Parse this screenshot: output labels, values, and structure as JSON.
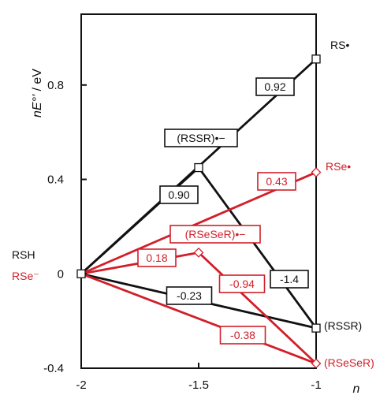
{
  "chart_data": {
    "type": "line",
    "title": "",
    "xlabel_italic": "n",
    "ylabel_italic": "nE°'",
    "ylabel_unit": " / eV",
    "xlim": [
      -2,
      -1
    ],
    "ylim": [
      -0.4,
      1.1
    ],
    "x_ticks": [
      -2,
      -1.5,
      -1
    ],
    "x_tick_labels": [
      "-2",
      "-1.5",
      "-1"
    ],
    "y_ticks": [
      -0.4,
      0,
      0.4,
      0.8
    ],
    "y_tick_labels": [
      "-0.4",
      "0",
      "0.4",
      "0.8"
    ],
    "grid": false,
    "colors": {
      "sulfur": "#111111",
      "selenium": "#d11f2a"
    },
    "points": {
      "RSH": {
        "x": -2,
        "y": 0
      },
      "RSSR_rad": {
        "x": -1.5,
        "y": 0.45
      },
      "RS_rad": {
        "x": -1,
        "y": 0.91
      },
      "RSSR": {
        "x": -1,
        "y": -0.23
      },
      "RSeSeR_rad": {
        "x": -1.5,
        "y": 0.09
      },
      "RSe_rad": {
        "x": -1,
        "y": 0.43
      },
      "RSeSeR": {
        "x": -1,
        "y": -0.38
      }
    },
    "series": [
      {
        "color": "sulfur",
        "x": [
          -2,
          -1
        ],
        "y": [
          0,
          0.91
        ],
        "label": "0.92"
      },
      {
        "color": "sulfur",
        "x": [
          -2,
          -1.5
        ],
        "y": [
          0,
          0.45
        ],
        "label": "0.90"
      },
      {
        "color": "sulfur",
        "x": [
          -1.5,
          -1
        ],
        "y": [
          0.45,
          -0.23
        ],
        "label": "-1.4"
      },
      {
        "color": "sulfur",
        "x": [
          -2,
          -1
        ],
        "y": [
          0,
          -0.23
        ],
        "label": "-0.23"
      },
      {
        "color": "selenium",
        "x": [
          -2,
          -1
        ],
        "y": [
          0,
          0.43
        ],
        "label": "0.43"
      },
      {
        "color": "selenium",
        "x": [
          -2,
          -1.5
        ],
        "y": [
          0,
          0.09
        ],
        "label": "0.18"
      },
      {
        "color": "selenium",
        "x": [
          -1.5,
          -1
        ],
        "y": [
          0.09,
          -0.38
        ],
        "label": "-0.94"
      },
      {
        "color": "selenium",
        "x": [
          -2,
          -1
        ],
        "y": [
          0,
          -0.38
        ],
        "label": "-0.38"
      }
    ],
    "species_labels": [
      {
        "id": "RSH",
        "text": "RSH",
        "color": "sulfur"
      },
      {
        "id": "RSe_minus",
        "text": "RSe⁻",
        "color": "selenium"
      },
      {
        "id": "RS_rad",
        "text": "RS•",
        "color": "sulfur"
      },
      {
        "id": "RSe_rad",
        "text": "RSe•",
        "color": "selenium"
      },
      {
        "id": "RSSR_rad",
        "text": "(RSSR)•−",
        "color": "sulfur",
        "boxed": true
      },
      {
        "id": "RSeSeR_rad",
        "text": "(RSeSeR)•−",
        "color": "selenium",
        "boxed": true
      },
      {
        "id": "RSSR",
        "text": "(RSSR)",
        "color": "sulfur"
      },
      {
        "id": "RSeSeR",
        "text": "(RSeSeR)",
        "color": "selenium"
      }
    ],
    "markers": [
      {
        "point": "RSH",
        "shape": "square",
        "color": "sulfur"
      },
      {
        "point": "RSSR_rad",
        "shape": "square",
        "color": "sulfur"
      },
      {
        "point": "RS_rad",
        "shape": "square",
        "color": "sulfur"
      },
      {
        "point": "RSSR",
        "shape": "square",
        "color": "sulfur"
      },
      {
        "point": "RSeSeR_rad",
        "shape": "diamond",
        "color": "selenium"
      },
      {
        "point": "RSe_rad",
        "shape": "diamond",
        "color": "selenium"
      },
      {
        "point": "RSeSeR",
        "shape": "diamond",
        "color": "selenium"
      }
    ]
  }
}
